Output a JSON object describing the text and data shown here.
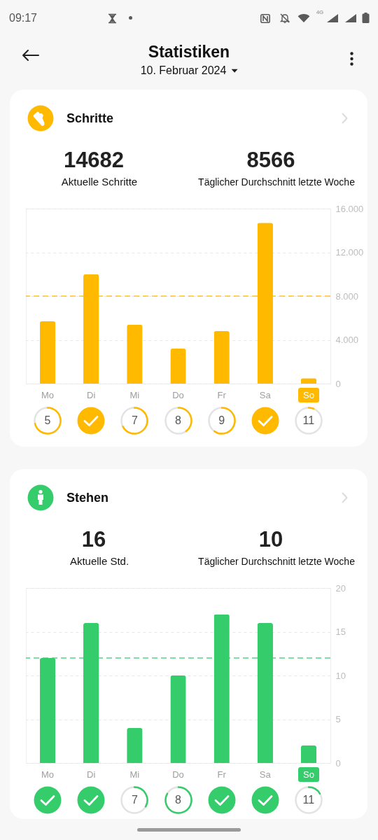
{
  "chart_data": [
    {
      "type": "other",
      "title": "Statistiken",
      "subtitle": "10. Februar 2024",
      "annotations": [
        "09:17",
        "4G"
      ]
    },
    {
      "type": "bar",
      "title": "Schritte",
      "categories": [
        "Mo",
        "Di",
        "Mi",
        "Do",
        "Fr",
        "Sa",
        "So"
      ],
      "values": [
        5700,
        10000,
        5400,
        3200,
        4800,
        14700,
        500
      ],
      "color": "#ffba00",
      "ylim": [
        0,
        16000
      ],
      "yticks": [
        0,
        {
          "value": 4000,
          "label": "4.000"
        },
        {
          "value": 8000,
          "label": "8.000"
        },
        {
          "value": 12000,
          "label": "12.000"
        },
        {
          "value": 16000,
          "label": "16.000"
        }
      ],
      "grid": "y",
      "ref_lines": [
        {
          "axis": "y",
          "value": 8000,
          "line_style": "dashed"
        }
      ],
      "annotations": [
        "14682",
        "Aktuelle Schritte",
        "8566",
        "Täglicher Durchschnitt letzte Woche",
        "5",
        "7",
        "8",
        "9",
        "11"
      ]
    },
    {
      "type": "bar",
      "title": "Stehen",
      "categories": [
        "Mo",
        "Di",
        "Mi",
        "Do",
        "Fr",
        "Sa",
        "So"
      ],
      "values": [
        12,
        16,
        4,
        10,
        17,
        16,
        2
      ],
      "color": "#35cc6c",
      "ylim": [
        0,
        20
      ],
      "yticks": [
        0,
        5,
        10,
        15,
        20
      ],
      "grid": "y",
      "ref_lines": [
        {
          "axis": "y",
          "value": 12,
          "line_style": "dashed"
        }
      ],
      "annotations": [
        "16",
        "Aktuelle Std.",
        "10",
        "Täglicher Durchschnitt letzte Woche",
        "7",
        "8",
        "11"
      ]
    }
  ]
}
